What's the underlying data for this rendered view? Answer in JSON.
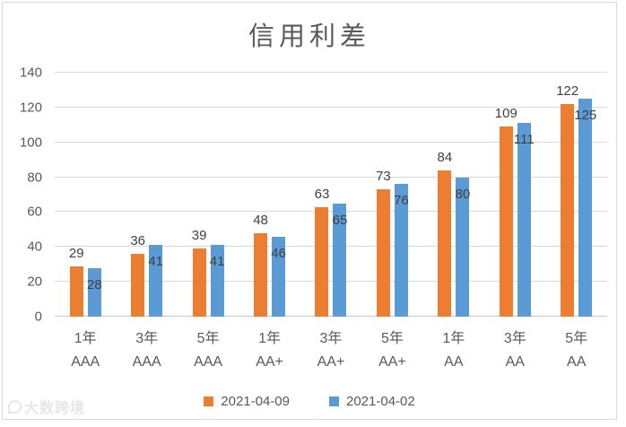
{
  "page": {
    "background": "#ffffff",
    "frame_border_color": "#d9d9d9"
  },
  "watermark": {
    "text": "大数跨境"
  },
  "chart_data": {
    "type": "bar",
    "title": "信用利差",
    "categories": [
      [
        "1年",
        "AAA"
      ],
      [
        "3年",
        "AAA"
      ],
      [
        "5年",
        "AAA"
      ],
      [
        "1年",
        "AA+"
      ],
      [
        "3年",
        "AA+"
      ],
      [
        "5年",
        "AA+"
      ],
      [
        "1年",
        "AA"
      ],
      [
        "3年",
        "AA"
      ],
      [
        "5年",
        "AA"
      ]
    ],
    "series": [
      {
        "name": "2021-04-09",
        "color": "#ED7D31",
        "values": [
          29,
          36,
          39,
          48,
          63,
          73,
          84,
          109,
          122
        ],
        "label_position": "above"
      },
      {
        "name": "2021-04-02",
        "color": "#5B9BD5",
        "values": [
          28,
          41,
          41,
          46,
          65,
          76,
          80,
          111,
          125
        ],
        "label_position": "inside-top"
      }
    ],
    "ylim": [
      0,
      140
    ],
    "yticks": [
      0,
      20,
      40,
      60,
      80,
      100,
      120,
      140
    ],
    "grid": "horizontal",
    "legend_position": "bottom",
    "text_colors": {
      "title": "#595959",
      "axis_labels": "#595959",
      "data_labels": "#404040"
    },
    "gridline_color": "#d9d9d9"
  }
}
